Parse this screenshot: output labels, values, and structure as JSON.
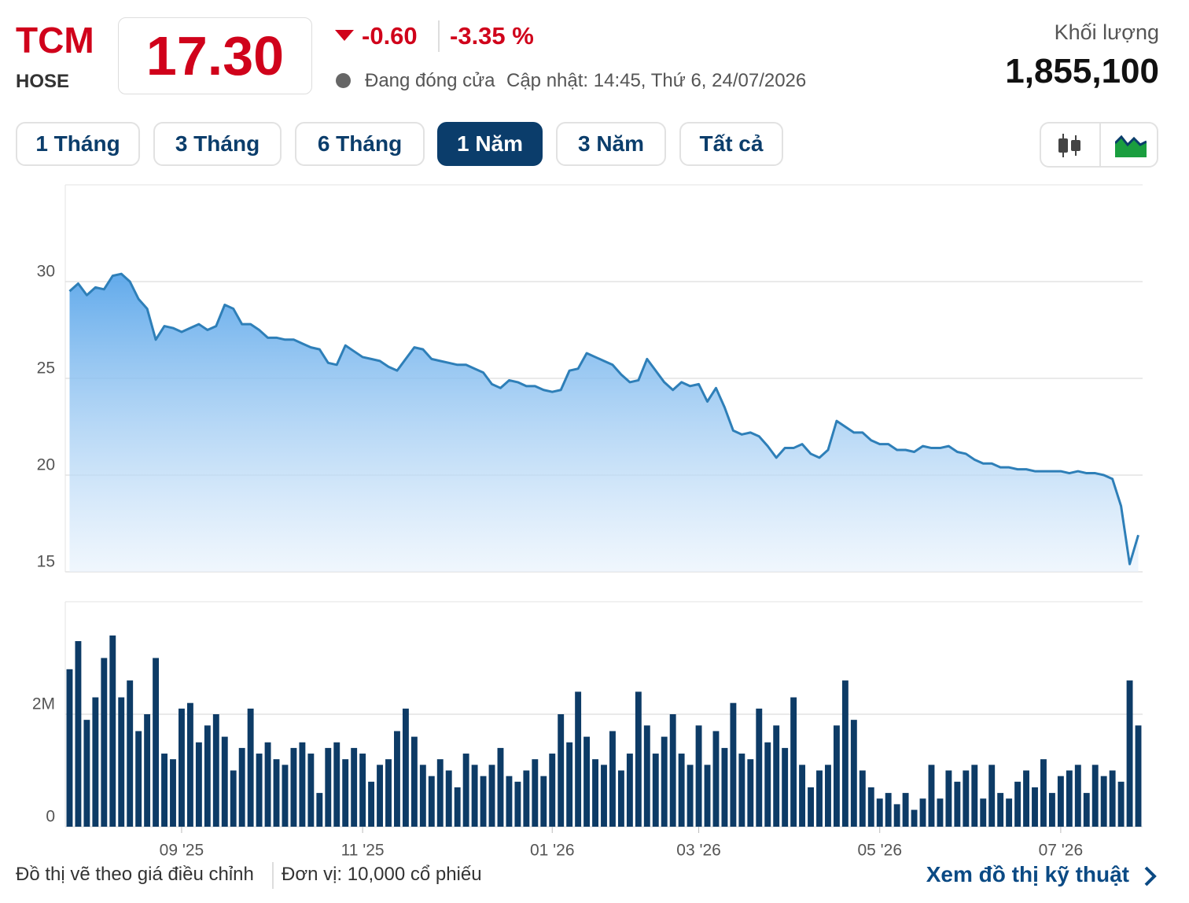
{
  "header": {
    "ticker": "TCM",
    "exchange": "HOSE",
    "price": "17.30",
    "change": "-0.60",
    "change_percent": "-3.35 %",
    "status": "Đang đóng cửa",
    "updated": "Cập nhật: 14:45, Thứ 6, 24/07/2026",
    "volume_label": "Khối lượng",
    "volume": "1,855,100"
  },
  "ranges": [
    "1 Tháng",
    "3 Tháng",
    "6 Tháng",
    "1 Năm",
    "3 Năm",
    "Tất cả"
  ],
  "footer": {
    "note": "Đồ thị vẽ theo giá điều chỉnh",
    "unit": "Đơn vị: 10,000 cổ phiếu",
    "link": "Xem đồ thị kỹ thuật"
  },
  "chart_data": [
    {
      "type": "area",
      "color": "#2e7fb8",
      "ylim": [
        15,
        35
      ],
      "yticks": [
        15,
        20,
        25,
        30
      ],
      "grid": true,
      "values": [
        29.5,
        29.9,
        29.3,
        29.7,
        29.6,
        30.3,
        30.4,
        30.0,
        29.1,
        28.6,
        27.0,
        27.7,
        27.6,
        27.4,
        27.6,
        27.8,
        27.5,
        27.7,
        28.8,
        28.6,
        27.8,
        27.8,
        27.5,
        27.1,
        27.1,
        27.0,
        27.0,
        26.8,
        26.6,
        26.5,
        25.8,
        25.7,
        26.7,
        26.4,
        26.1,
        26.0,
        25.9,
        25.6,
        25.4,
        26.0,
        26.6,
        26.5,
        26.0,
        25.9,
        25.8,
        25.7,
        25.7,
        25.5,
        25.3,
        24.7,
        24.5,
        24.9,
        24.8,
        24.6,
        24.6,
        24.4,
        24.3,
        24.4,
        25.4,
        25.5,
        26.3,
        26.1,
        25.9,
        25.7,
        25.2,
        24.8,
        24.9,
        26.0,
        25.4,
        24.8,
        24.4,
        24.8,
        24.6,
        24.7,
        23.8,
        24.5,
        23.5,
        22.3,
        22.1,
        22.2,
        22.0,
        21.5,
        20.9,
        21.4,
        21.4,
        21.6,
        21.1,
        20.9,
        21.3,
        22.8,
        22.5,
        22.2,
        22.2,
        21.8,
        21.6,
        21.6,
        21.3,
        21.3,
        21.2,
        21.5,
        21.4,
        21.4,
        21.5,
        21.2,
        21.1,
        20.8,
        20.6,
        20.6,
        20.4,
        20.4,
        20.3,
        20.3,
        20.2,
        20.2,
        20.2,
        20.2,
        20.1,
        20.2,
        20.1,
        20.1,
        20.0,
        19.8,
        18.4,
        15.4,
        16.9
      ]
    },
    {
      "type": "bar",
      "color": "#0d3b66",
      "ylim": [
        0,
        4000000
      ],
      "yticks": [
        0,
        {
          "value": 2000000,
          "label": "2M"
        }
      ],
      "grid": true,
      "categories": [
        null,
        null,
        null,
        null,
        null,
        null,
        null,
        null,
        null,
        null,
        null,
        null,
        null,
        "09 '25",
        null,
        null,
        null,
        null,
        null,
        null,
        null,
        null,
        null,
        null,
        null,
        null,
        null,
        null,
        null,
        null,
        null,
        null,
        null,
        null,
        "11 '25",
        null,
        null,
        null,
        null,
        null,
        null,
        null,
        null,
        null,
        null,
        null,
        null,
        null,
        null,
        null,
        null,
        null,
        null,
        null,
        null,
        null,
        "01 '26",
        null,
        null,
        null,
        null,
        null,
        null,
        null,
        null,
        null,
        null,
        null,
        null,
        null,
        null,
        null,
        null,
        "03 '26",
        null,
        null,
        null,
        null,
        null,
        null,
        null,
        null,
        null,
        null,
        null,
        null,
        null,
        null,
        null,
        null,
        null,
        null,
        null,
        null,
        "05 '26",
        null,
        null,
        null,
        null,
        null,
        null,
        null,
        null,
        null,
        null,
        null,
        null,
        null,
        null,
        null,
        null,
        null,
        null,
        null,
        null,
        "07 '26",
        null,
        null,
        null,
        null,
        null,
        null,
        null,
        null,
        null
      ],
      "values": [
        2800000,
        3300000,
        1900000,
        2300000,
        3000000,
        3400000,
        2300000,
        2600000,
        1700000,
        2000000,
        3000000,
        1300000,
        1200000,
        2100000,
        2200000,
        1500000,
        1800000,
        2000000,
        1600000,
        1000000,
        1400000,
        2100000,
        1300000,
        1500000,
        1200000,
        1100000,
        1400000,
        1500000,
        1300000,
        600000,
        1400000,
        1500000,
        1200000,
        1400000,
        1300000,
        800000,
        1100000,
        1200000,
        1700000,
        2100000,
        1600000,
        1100000,
        900000,
        1200000,
        1000000,
        700000,
        1300000,
        1100000,
        900000,
        1100000,
        1400000,
        900000,
        800000,
        1000000,
        1200000,
        900000,
        1300000,
        2000000,
        1500000,
        2400000,
        1600000,
        1200000,
        1100000,
        1700000,
        1000000,
        1300000,
        2400000,
        1800000,
        1300000,
        1600000,
        2000000,
        1300000,
        1100000,
        1800000,
        1100000,
        1700000,
        1400000,
        2200000,
        1300000,
        1200000,
        2100000,
        1500000,
        1800000,
        1400000,
        2300000,
        1100000,
        700000,
        1000000,
        1100000,
        1800000,
        2600000,
        1900000,
        1000000,
        700000,
        500000,
        600000,
        400000,
        600000,
        300000,
        500000,
        1100000,
        500000,
        1000000,
        800000,
        1000000,
        1100000,
        500000,
        1100000,
        600000,
        500000,
        800000,
        1000000,
        700000,
        1200000,
        600000,
        900000,
        1000000,
        1100000,
        600000,
        1100000,
        900000,
        1000000,
        800000,
        2600000,
        1800000
      ]
    }
  ]
}
